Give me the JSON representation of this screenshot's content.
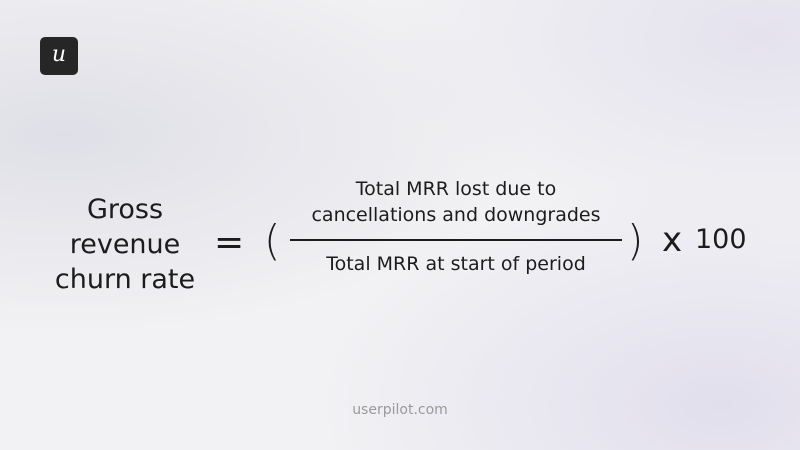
{
  "logo": "u",
  "formula": {
    "lhs": [
      "Gross",
      "revenue",
      "churn rate"
    ],
    "equals": "=",
    "open_paren": "(",
    "numerator": [
      "Total MRR lost due to",
      "cancellations and downgrades"
    ],
    "denominator": "Total MRR at start of period",
    "close_paren": ")",
    "operator": "x",
    "factor": "100"
  },
  "footer": "userpilot.com"
}
